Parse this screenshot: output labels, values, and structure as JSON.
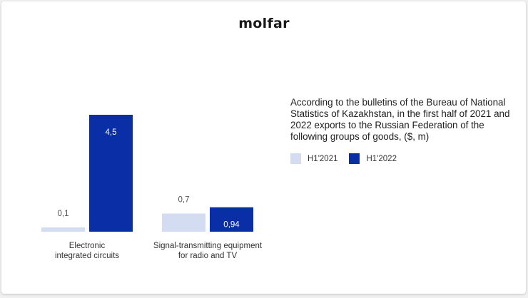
{
  "brand": {
    "logo_text": "molfar"
  },
  "description": "According to the bulletins of the Bureau of National Statistics of Kazakhstan, in the first half of 2021 and 2022 exports to the Russian Federation of the following groups of goods, ($, m)",
  "chart_data": {
    "type": "bar",
    "categories": [
      [
        "Electronic",
        "integrated circuits"
      ],
      [
        "Signal-transmitting equipment",
        "for radio and TV"
      ]
    ],
    "series": [
      {
        "name": "H1'2021",
        "color": "#d4dcf2",
        "labels": [
          "0,1",
          "0,7"
        ],
        "values": [
          0.1,
          0.7
        ]
      },
      {
        "name": "H1'2022",
        "color": "#0a2ea6",
        "labels": [
          "4,5",
          "0,94"
        ],
        "values": [
          4.5,
          0.94
        ]
      }
    ],
    "title": "",
    "xlabel": "",
    "ylabel": "",
    "ylim": [
      0,
      4.5
    ],
    "grid": false,
    "legend_position": "right"
  }
}
